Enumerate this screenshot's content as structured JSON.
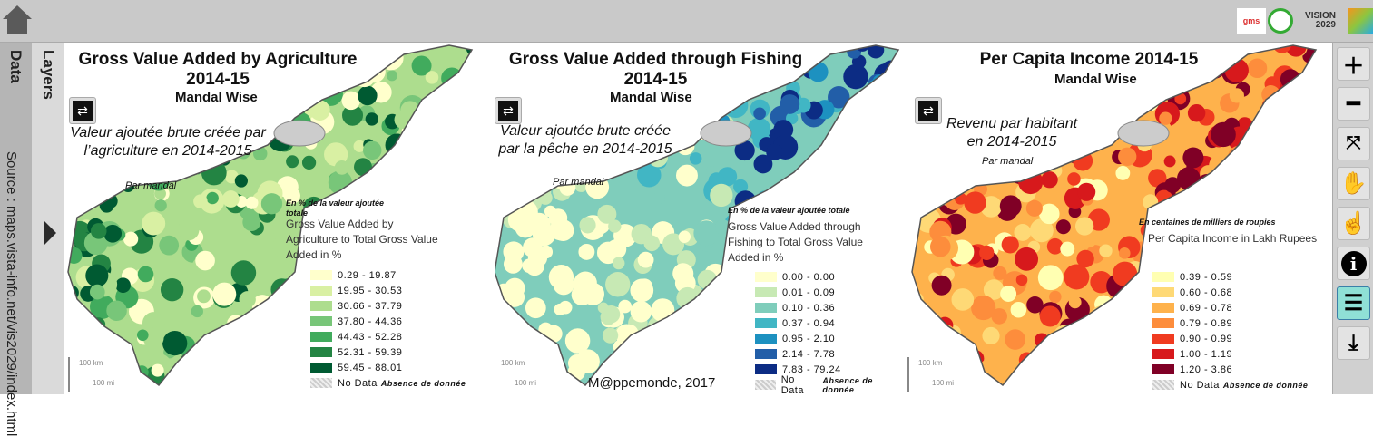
{
  "sidebar": {
    "data_label": "Data",
    "layers_label": "Layers",
    "source": "Source : maps.vista-info.net/vis2029/index.html"
  },
  "logos": [
    "gms",
    "AP emblem",
    "VISION 2029"
  ],
  "credit": "M@ppemonde, 2017",
  "scale": {
    "km": "100 km",
    "mi": "100 mi"
  },
  "panels": [
    {
      "title": "Gross Value Added by Agriculture 2014-15",
      "subtitle": "Mandal Wise",
      "fr_title": "Valeur ajoutée brute créée par l’agriculture en 2014-2015",
      "fr_sub": "Par mandal",
      "legend_note": "En % de la valeur ajoutée totale",
      "legend_title": "Gross Value Added by Agriculture to Total Gross Value Added in %",
      "classes": [
        "0.29 - 19.87",
        "19.95 - 30.53",
        "30.66 - 37.79",
        "37.80 - 44.36",
        "44.43 - 52.28",
        "52.31 - 59.39",
        "59.45 - 88.01"
      ],
      "colors": [
        "#ffffcc",
        "#d9f0a3",
        "#addd8e",
        "#78c679",
        "#41ab5d",
        "#238443",
        "#005a32"
      ]
    },
    {
      "title": "Gross Value Added through Fishing 2014-15",
      "subtitle": "Mandal Wise",
      "fr_title": "Valeur ajoutée brute créée par la pêche en 2014-2015",
      "fr_sub": "Par mandal",
      "legend_note": "En % de la valeur ajoutée totale",
      "legend_title": "Gross Value Added through Fishing to Total Gross Value Added in %",
      "classes": [
        "0.00 - 0.00",
        "0.01 - 0.09",
        "0.10 - 0.36",
        "0.37 - 0.94",
        "0.95 - 2.10",
        "2.14 - 7.78",
        "7.83 - 79.24"
      ],
      "colors": [
        "#ffffcc",
        "#c7e9b4",
        "#7fcdbb",
        "#41b6c4",
        "#1d91c0",
        "#225ea8",
        "#0c2c84"
      ]
    },
    {
      "title": "Per Capita Income 2014-15",
      "subtitle": "Mandal Wise",
      "fr_title": "Revenu par habitant en 2014-2015",
      "fr_sub": "Par mandal",
      "legend_note": "En centaines de milliers de roupies",
      "legend_title": "Per Capita Income in Lakh Rupees",
      "classes": [
        "0.39 - 0.59",
        "0.60 - 0.68",
        "0.69 - 0.78",
        "0.79 - 0.89",
        "0.90 - 0.99",
        "1.00 - 1.19",
        "1.20 - 3.86"
      ],
      "colors": [
        "#ffffb2",
        "#fed976",
        "#feb24c",
        "#fd8d3c",
        "#f03b20",
        "#d7191c",
        "#800026"
      ]
    }
  ],
  "nodata": {
    "label": "No Data",
    "fr": "Absence de donnée"
  },
  "toolbar": [
    "zoom-in",
    "zoom-out",
    "full-extent",
    "pan",
    "select",
    "info",
    "legend",
    "download"
  ]
}
